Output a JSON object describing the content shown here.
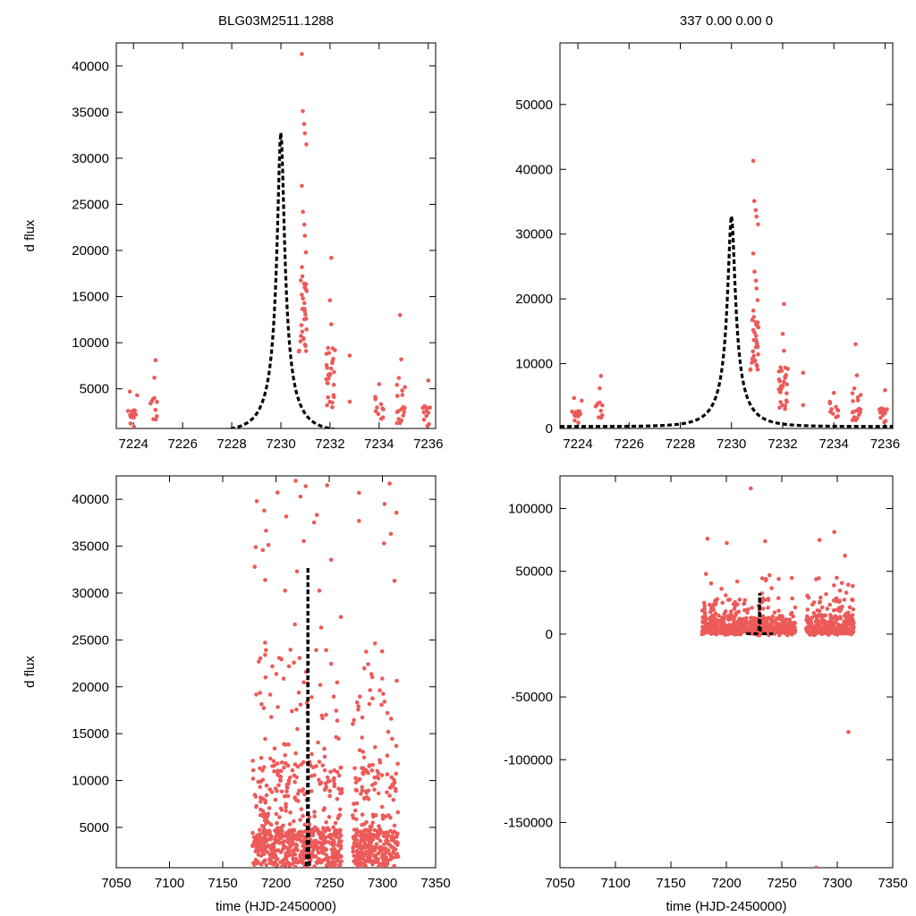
{
  "chart_data": [
    {
      "type": "scatter",
      "panel": "top-left",
      "title": "BLG03M2511.1288",
      "xlabel": "",
      "ylabel": "d flux",
      "xlim": [
        7223.3,
        7236.3
      ],
      "ylim": [
        700,
        42500
      ],
      "xticks": [
        7224,
        7226,
        7228,
        7230,
        7232,
        7234,
        7236
      ],
      "yticks": [
        5000,
        10000,
        15000,
        20000,
        25000,
        30000,
        35000,
        40000
      ],
      "model": {
        "name": "model fit",
        "style": "dashed",
        "peak_time": 7230.0,
        "peak_flux": 32800,
        "baseline": 300,
        "tE": 1.15
      },
      "series": [
        {
          "name": "data",
          "color": "#ec5a5a"
        }
      ]
    },
    {
      "type": "scatter",
      "panel": "top-right",
      "title": "337  0.00  0.00  0",
      "xlabel": "",
      "ylabel": "",
      "xlim": [
        7223.3,
        7236.3
      ],
      "ylim": [
        0,
        59500
      ],
      "xticks": [
        7224,
        7226,
        7228,
        7230,
        7232,
        7234,
        7236
      ],
      "yticks": [
        0,
        10000,
        20000,
        30000,
        40000,
        50000
      ],
      "model": {
        "name": "model fit",
        "style": "dashed",
        "peak_time": 7230.0,
        "peak_flux": 32800,
        "baseline": 300,
        "tE": 1.15
      },
      "series": [
        {
          "name": "data",
          "color": "#ec5a5a"
        }
      ]
    },
    {
      "type": "scatter",
      "panel": "bottom-left",
      "title": "",
      "xlabel": "time (HJD-2450000)",
      "ylabel": "d flux",
      "xlim": [
        7050,
        7350
      ],
      "ylim": [
        700,
        42500
      ],
      "xticks": [
        7050,
        7100,
        7150,
        7200,
        7250,
        7300,
        7350
      ],
      "yticks": [
        5000,
        10000,
        15000,
        20000,
        25000,
        30000,
        35000,
        40000
      ],
      "model": {
        "name": "model fit",
        "style": "dashed",
        "peak_time": 7230.0,
        "peak_flux": 32800,
        "baseline": 300,
        "tE": 1.15
      },
      "series": [
        {
          "name": "data",
          "color": "#ec5a5a"
        }
      ]
    },
    {
      "type": "scatter",
      "panel": "bottom-right",
      "title": "",
      "xlabel": "time (HJD-2450000)",
      "ylabel": "",
      "xlim": [
        7050,
        7350
      ],
      "ylim": [
        -186000,
        126000
      ],
      "xticks": [
        7050,
        7100,
        7150,
        7200,
        7250,
        7300,
        7350
      ],
      "yticks": [
        -150000,
        -100000,
        -50000,
        0,
        50000,
        100000
      ],
      "model": {
        "name": "model fit",
        "style": "dashed",
        "peak_time": 7230.0,
        "peak_flux": 32800,
        "baseline": 300,
        "tE": 1.15
      },
      "series": [
        {
          "name": "data",
          "color": "#ec5a5a"
        }
      ]
    }
  ]
}
